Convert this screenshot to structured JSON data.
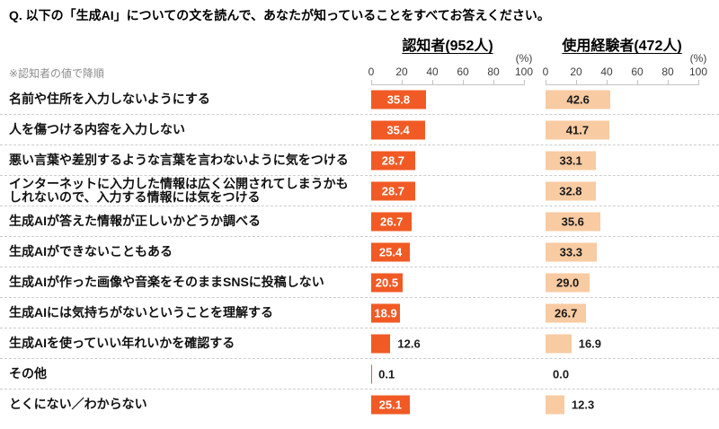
{
  "title": "Q. 以下の「生成AI」についての文を読んで、あなたが知っていることをすべてお答えください。",
  "sort_note": "※認知者の値で降順",
  "percent_label": "(%)",
  "chart_data": {
    "type": "bar",
    "orientation": "horizontal",
    "value_unit": "%",
    "xlim": [
      0,
      100
    ],
    "axis_ticks": [
      "0",
      "20",
      "40",
      "60",
      "80",
      "100"
    ],
    "grid": "off",
    "row_separator": "dashed",
    "categories": [
      "名前や住所を入力しないようにする",
      "人を傷つける内容を入力しない",
      "悪い言葉や差別するような言葉を言わないように気をつける",
      "インターネットに入力した情報は広く公開されてしまうかもしれないので、入力する情報には気をつける",
      "生成AIが答えた情報が正しいかどうか調べる",
      "生成AIができないこともある",
      "生成AIが作った画像や音楽をそのままSNSに投稿しない",
      "生成AIには気持ちがないということを理解する",
      "生成AIを使っていい年れいかを確認する",
      "その他",
      "とくにない／わからない"
    ],
    "series": [
      {
        "name": "認知者(952人)",
        "color": "#F15A24",
        "value_text_color": "#ffffff",
        "values": [
          "35.8",
          "35.4",
          "28.7",
          "28.7",
          "26.7",
          "25.4",
          "20.5",
          "18.9",
          "12.6",
          "0.1",
          "25.1"
        ]
      },
      {
        "name": "使用経験者(472人)",
        "color": "#F8CBA2",
        "value_text_color": "#1a1a1a",
        "values": [
          "42.6",
          "41.7",
          "33.1",
          "32.8",
          "35.6",
          "33.3",
          "29.0",
          "26.7",
          "16.9",
          "0.0",
          "12.3"
        ]
      }
    ]
  }
}
